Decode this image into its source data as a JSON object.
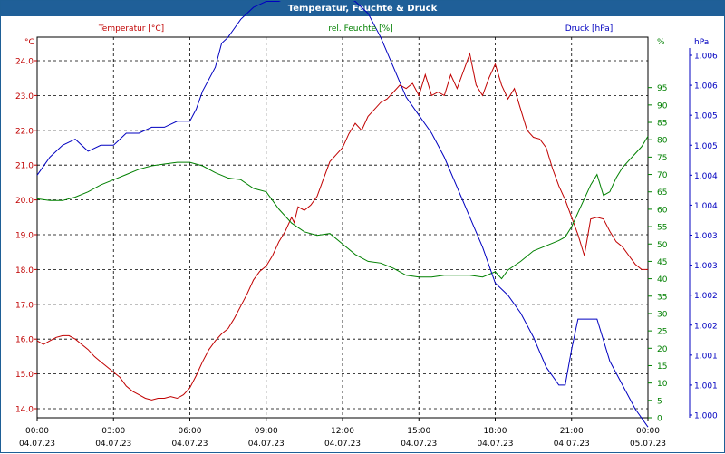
{
  "window": {
    "title": "Temperatur, Feuchte & Druck"
  },
  "chart_data": {
    "type": "line",
    "x_ticks": [
      {
        "time": "00:00",
        "date": "04.07.23"
      },
      {
        "time": "03:00",
        "date": "04.07.23"
      },
      {
        "time": "06:00",
        "date": "04.07.23"
      },
      {
        "time": "09:00",
        "date": "04.07.23"
      },
      {
        "time": "12:00",
        "date": "04.07.23"
      },
      {
        "time": "15:00",
        "date": "04.07.23"
      },
      {
        "time": "18:00",
        "date": "04.07.23"
      },
      {
        "time": "21:00",
        "date": "04.07.23"
      },
      {
        "time": "00:00",
        "date": "05.07.23"
      }
    ],
    "xlim": [
      "04.07.23 00:00",
      "05.07.23 00:00"
    ],
    "grid": true,
    "axes": {
      "temperature": {
        "unit": "°C",
        "ylim": [
          13.8,
          24.5
        ],
        "ticks": [
          "14.0",
          "15.0",
          "16.0",
          "17.0",
          "18.0",
          "19.0",
          "20.0",
          "21.0",
          "22.0",
          "23.0",
          "24.0"
        ],
        "color": "#c00000"
      },
      "humidity": {
        "unit": "%",
        "ylim": [
          0,
          96
        ],
        "ticks": [
          "0",
          "5",
          "10",
          "15",
          "20",
          "25",
          "30",
          "35",
          "40",
          "45",
          "50",
          "55",
          "60",
          "65",
          "70",
          "75",
          "80",
          "85",
          "90",
          "95"
        ],
        "color": "#008000"
      },
      "pressure": {
        "unit": "hPa",
        "ticks": [
          "1.000",
          "1.001",
          "1.001",
          "1.002",
          "1.002",
          "1.003",
          "1.003",
          "1.004",
          "1.004",
          "1.005",
          "1.005",
          "1.006",
          "1.006"
        ],
        "ylim": [
          1.0,
          1.006
        ],
        "color": "#0000c0"
      }
    },
    "series": [
      {
        "name": "Temperatur [°C]",
        "color": "#c00000",
        "axis": "temperature",
        "points": [
          [
            0,
            15.95
          ],
          [
            0.25,
            15.85
          ],
          [
            0.5,
            15.95
          ],
          [
            0.75,
            16.05
          ],
          [
            1,
            16.1
          ],
          [
            1.25,
            16.1
          ],
          [
            1.5,
            16.0
          ],
          [
            1.75,
            15.85
          ],
          [
            2,
            15.7
          ],
          [
            2.25,
            15.5
          ],
          [
            2.5,
            15.35
          ],
          [
            2.75,
            15.2
          ],
          [
            3,
            15.05
          ],
          [
            3.25,
            14.9
          ],
          [
            3.5,
            14.65
          ],
          [
            3.75,
            14.5
          ],
          [
            4,
            14.4
          ],
          [
            4.25,
            14.3
          ],
          [
            4.5,
            14.25
          ],
          [
            4.75,
            14.3
          ],
          [
            5,
            14.3
          ],
          [
            5.25,
            14.35
          ],
          [
            5.5,
            14.3
          ],
          [
            5.75,
            14.4
          ],
          [
            6,
            14.6
          ],
          [
            6.25,
            14.95
          ],
          [
            6.5,
            15.35
          ],
          [
            6.75,
            15.7
          ],
          [
            7,
            15.95
          ],
          [
            7.25,
            16.15
          ],
          [
            7.5,
            16.3
          ],
          [
            7.75,
            16.6
          ],
          [
            8,
            16.95
          ],
          [
            8.25,
            17.3
          ],
          [
            8.5,
            17.7
          ],
          [
            8.75,
            17.95
          ],
          [
            9,
            18.1
          ],
          [
            9.25,
            18.4
          ],
          [
            9.5,
            18.8
          ],
          [
            9.75,
            19.1
          ],
          [
            10,
            19.5
          ],
          [
            10.1,
            19.35
          ],
          [
            10.25,
            19.8
          ],
          [
            10.5,
            19.7
          ],
          [
            10.75,
            19.85
          ],
          [
            11,
            20.1
          ],
          [
            11.25,
            20.6
          ],
          [
            11.5,
            21.1
          ],
          [
            11.75,
            21.3
          ],
          [
            12,
            21.5
          ],
          [
            12.25,
            21.9
          ],
          [
            12.5,
            22.2
          ],
          [
            12.75,
            22.0
          ],
          [
            13,
            22.4
          ],
          [
            13.25,
            22.6
          ],
          [
            13.5,
            22.8
          ],
          [
            13.75,
            22.9
          ],
          [
            14,
            23.1
          ],
          [
            14.25,
            23.3
          ],
          [
            14.5,
            23.2
          ],
          [
            14.75,
            23.35
          ],
          [
            15,
            23.0
          ],
          [
            15.25,
            23.6
          ],
          [
            15.5,
            23.0
          ],
          [
            15.75,
            23.1
          ],
          [
            16,
            23.0
          ],
          [
            16.25,
            23.6
          ],
          [
            16.5,
            23.2
          ],
          [
            16.75,
            23.7
          ],
          [
            17,
            24.2
          ],
          [
            17.25,
            23.3
          ],
          [
            17.5,
            23.0
          ],
          [
            17.75,
            23.5
          ],
          [
            18,
            23.9
          ],
          [
            18.25,
            23.3
          ],
          [
            18.5,
            22.9
          ],
          [
            18.75,
            23.2
          ],
          [
            19,
            22.6
          ],
          [
            19.25,
            22.0
          ],
          [
            19.5,
            21.8
          ],
          [
            19.75,
            21.75
          ],
          [
            20,
            21.5
          ],
          [
            20.25,
            20.9
          ],
          [
            20.5,
            20.4
          ],
          [
            20.75,
            20.0
          ],
          [
            21,
            19.5
          ],
          [
            21.25,
            19.0
          ],
          [
            21.5,
            18.4
          ],
          [
            21.75,
            19.45
          ],
          [
            22,
            19.5
          ],
          [
            22.25,
            19.45
          ],
          [
            22.5,
            19.1
          ],
          [
            22.75,
            18.8
          ],
          [
            23,
            18.65
          ],
          [
            23.25,
            18.4
          ],
          [
            23.5,
            18.15
          ],
          [
            23.75,
            18.0
          ],
          [
            24,
            18.0
          ]
        ]
      },
      {
        "name": "rel. Feuchte [%]",
        "color": "#008000",
        "axis": "humidity",
        "points": [
          [
            0,
            63
          ],
          [
            0.5,
            62.5
          ],
          [
            1,
            62.5
          ],
          [
            1.5,
            63.5
          ],
          [
            2,
            65
          ],
          [
            2.5,
            67
          ],
          [
            3,
            68.5
          ],
          [
            3.5,
            70
          ],
          [
            4,
            71.5
          ],
          [
            4.5,
            72.5
          ],
          [
            5,
            73
          ],
          [
            5.5,
            73.5
          ],
          [
            6,
            73.5
          ],
          [
            6.5,
            72.5
          ],
          [
            7,
            70.5
          ],
          [
            7.5,
            69
          ],
          [
            8,
            68.5
          ],
          [
            8.5,
            66
          ],
          [
            9,
            65
          ],
          [
            9.5,
            60
          ],
          [
            10,
            56
          ],
          [
            10.5,
            53.5
          ],
          [
            11,
            52.5
          ],
          [
            11.5,
            53
          ],
          [
            12,
            50
          ],
          [
            12.5,
            47
          ],
          [
            13,
            45
          ],
          [
            13.5,
            44.5
          ],
          [
            14,
            43
          ],
          [
            14.5,
            41
          ],
          [
            15,
            40.5
          ],
          [
            15.5,
            40.5
          ],
          [
            16,
            41
          ],
          [
            16.5,
            41
          ],
          [
            17,
            41
          ],
          [
            17.5,
            40.5
          ],
          [
            18,
            42
          ],
          [
            18.25,
            40
          ],
          [
            18.5,
            42.5
          ],
          [
            19,
            45
          ],
          [
            19.5,
            48
          ],
          [
            20,
            49.5
          ],
          [
            20.5,
            51
          ],
          [
            20.75,
            52
          ],
          [
            21,
            55
          ],
          [
            21.25,
            59
          ],
          [
            21.5,
            63
          ],
          [
            21.75,
            67
          ],
          [
            22,
            70
          ],
          [
            22.25,
            64
          ],
          [
            22.5,
            65
          ],
          [
            22.75,
            69
          ],
          [
            23,
            72
          ],
          [
            23.25,
            74
          ],
          [
            23.5,
            76
          ],
          [
            23.75,
            78
          ],
          [
            24,
            81
          ]
        ]
      },
      {
        "name": "Druck [hPa]",
        "color": "#0000c0",
        "axis": "pressure",
        "points": [
          [
            0,
            1.004
          ],
          [
            0.5,
            1.0043
          ],
          [
            1,
            1.0045
          ],
          [
            1.5,
            1.0046
          ],
          [
            2,
            1.0044
          ],
          [
            2.5,
            1.0045
          ],
          [
            3,
            1.0045
          ],
          [
            3.5,
            1.0047
          ],
          [
            4,
            1.0047
          ],
          [
            4.5,
            1.0048
          ],
          [
            5,
            1.0048
          ],
          [
            5.5,
            1.0049
          ],
          [
            6,
            1.0049
          ],
          [
            6.25,
            1.0051
          ],
          [
            6.5,
            1.0054
          ],
          [
            7,
            1.0058
          ],
          [
            7.25,
            1.0062
          ],
          [
            7.5,
            1.0063
          ],
          [
            8,
            1.0066
          ],
          [
            8.5,
            1.0068
          ],
          [
            9,
            1.0069
          ],
          [
            9.5,
            1.0069
          ],
          [
            10,
            1.007
          ],
          [
            10.25,
            1.0072
          ],
          [
            10.5,
            1.0075
          ],
          [
            10.75,
            1.0077
          ],
          [
            11,
            1.0077
          ],
          [
            11.5,
            1.0072
          ],
          [
            12,
            1.007
          ],
          [
            12.5,
            1.0069
          ],
          [
            13,
            1.0067
          ],
          [
            13.5,
            1.0063
          ],
          [
            14,
            1.0058
          ],
          [
            14.5,
            1.0053
          ],
          [
            15,
            1.005
          ],
          [
            15.5,
            1.0047
          ],
          [
            16,
            1.0043
          ],
          [
            16.5,
            1.0038
          ],
          [
            17,
            1.0033
          ],
          [
            17.5,
            1.0028
          ],
          [
            18,
            1.0022
          ],
          [
            18.5,
            1.002
          ],
          [
            19,
            1.0017
          ],
          [
            19.5,
            1.0013
          ],
          [
            20,
            1.0008
          ],
          [
            20.5,
            1.0005
          ],
          [
            20.75,
            1.0005
          ],
          [
            21,
            1.0011
          ],
          [
            21.25,
            1.0016
          ],
          [
            21.5,
            1.0016
          ],
          [
            22,
            1.0016
          ],
          [
            22.5,
            1.0009
          ],
          [
            23,
            1.0005
          ],
          [
            23.5,
            1.0001
          ],
          [
            24,
            0.9998
          ]
        ]
      }
    ],
    "axis_titles": {
      "temperature": "Temperatur [°C]",
      "humidity": "rel. Feuchte [%]",
      "pressure": "Druck [hPa]",
      "left_unit": "°C",
      "right_unit": "hPa"
    }
  }
}
